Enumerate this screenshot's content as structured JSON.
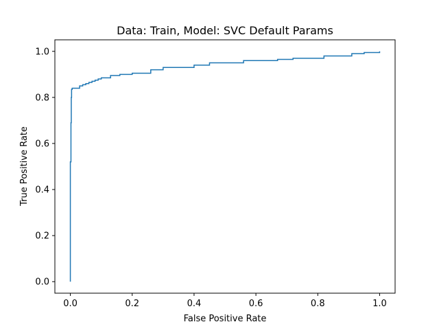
{
  "chart_data": {
    "type": "line",
    "title": "Data: Train, Model: SVC Default Params",
    "xlabel": "False Positive Rate",
    "ylabel": "True Positive Rate",
    "xlim": [
      -0.05,
      1.05
    ],
    "ylim": [
      -0.05,
      1.05
    ],
    "xticks": [
      "0.0",
      "0.2",
      "0.4",
      "0.6",
      "0.8",
      "1.0"
    ],
    "yticks": [
      "0.0",
      "0.2",
      "0.4",
      "0.6",
      "0.8",
      "1.0"
    ],
    "grid": false,
    "series": [
      {
        "color": "#1f77b4",
        "x": [
          0.0,
          0.0,
          0.002,
          0.003,
          0.004,
          0.006,
          0.02,
          0.03,
          0.04,
          0.05,
          0.06,
          0.07,
          0.08,
          0.09,
          0.1,
          0.13,
          0.16,
          0.2,
          0.26,
          0.3,
          0.4,
          0.45,
          0.56,
          0.67,
          0.72,
          0.82,
          0.91,
          0.95,
          1.0
        ],
        "y": [
          0.0,
          0.52,
          0.69,
          0.8,
          0.835,
          0.84,
          0.84,
          0.85,
          0.855,
          0.86,
          0.865,
          0.87,
          0.875,
          0.88,
          0.885,
          0.895,
          0.9,
          0.905,
          0.92,
          0.93,
          0.94,
          0.95,
          0.96,
          0.965,
          0.97,
          0.98,
          0.99,
          0.995,
          1.0
        ]
      }
    ]
  }
}
